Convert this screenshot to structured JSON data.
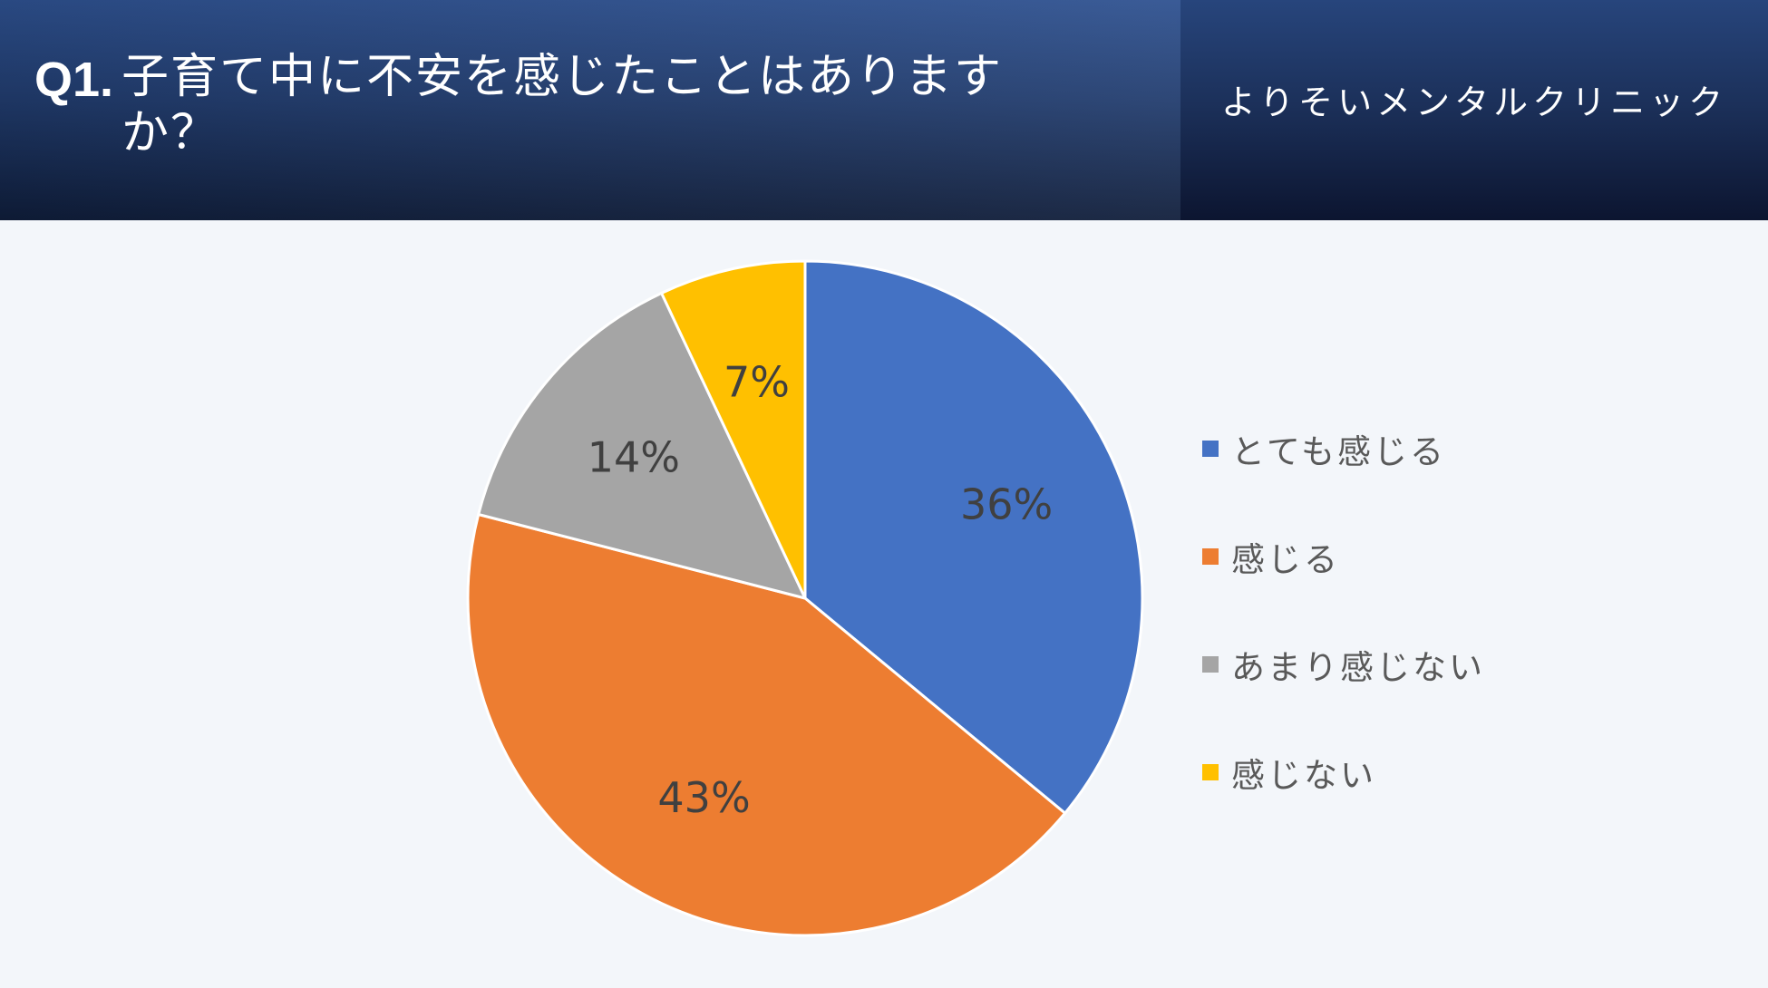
{
  "header": {
    "question_number": "Q1.",
    "question": "子育て中に不安を感じたことはありますか？",
    "clinic_name": "よりそいメンタルクリニック"
  },
  "chart_data": {
    "type": "pie",
    "categories": [
      "とても感じる",
      "感じる",
      "あまり感じない",
      "感じない"
    ],
    "values": [
      36,
      43,
      14,
      7
    ],
    "labels": [
      "36%",
      "43%",
      "14%",
      "7%"
    ],
    "colors": [
      "#4472c4",
      "#ed7d31",
      "#a5a5a5",
      "#ffc000"
    ],
    "legend_position": "right"
  }
}
